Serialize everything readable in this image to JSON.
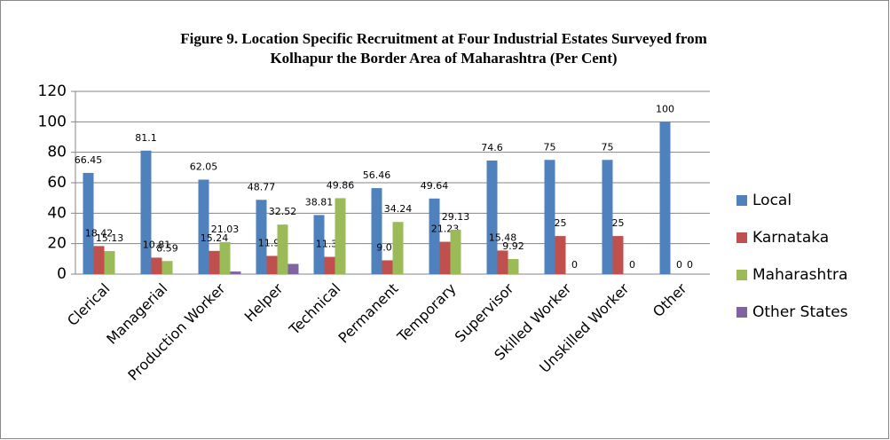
{
  "chart_data": {
    "type": "bar",
    "title": [
      "Figure 9. Location Specific Recruitment at Four Industrial Estates Surveyed from",
      "Kolhapur the Border Area of Maharashtra (Per Cent)"
    ],
    "categories": [
      "Clerical",
      "Managerial",
      "Production Worker",
      "Helper",
      "Technical",
      "Permanent",
      "Temporary",
      "Supervisor",
      "Skilled Worker",
      "Unskilled Worker",
      "Other"
    ],
    "series": [
      {
        "name": "Local",
        "color": "#4f81bd",
        "data_labels": true,
        "values": [
          66.45,
          81.1,
          62.05,
          48.77,
          38.81,
          56.46,
          49.64,
          74.6,
          75,
          75,
          100
        ]
      },
      {
        "name": "Karnataka",
        "color": "#c0504d",
        "data_labels": true,
        "values": [
          18.42,
          10.81,
          15.24,
          11.96,
          11.33,
          9.05,
          21.23,
          15.48,
          25,
          25,
          0
        ]
      },
      {
        "name": "Maharashtra",
        "color": "#9bbb59",
        "data_labels": true,
        "values": [
          15.13,
          8.59,
          21.03,
          32.52,
          49.86,
          34.24,
          29.13,
          9.92,
          0,
          0,
          0
        ]
      },
      {
        "name": "Other States",
        "color": "#8064a2",
        "data_labels": false,
        "values": [
          null,
          null,
          1.7,
          6.7,
          null,
          null,
          null,
          null,
          null,
          null,
          null
        ]
      }
    ],
    "ylim": [
      0,
      120
    ],
    "yticks": [
      0,
      20,
      40,
      60,
      80,
      100,
      120
    ],
    "grid": true,
    "legend": "right"
  }
}
